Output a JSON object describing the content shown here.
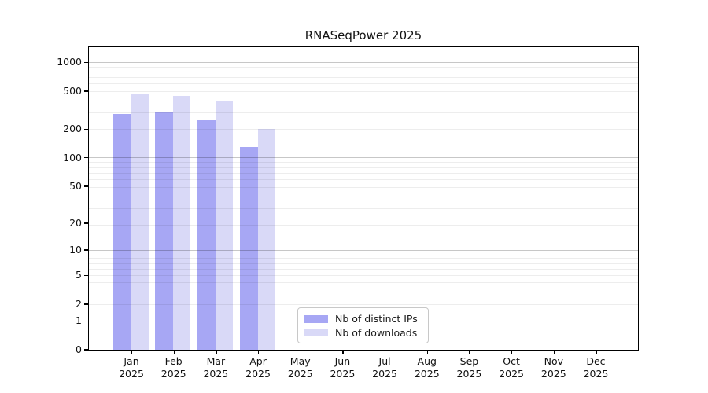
{
  "figure": {
    "title": "RNASeqPower 2025"
  },
  "chart_data": {
    "type": "bar",
    "title": "RNASeqPower 2025",
    "xlabel": "",
    "ylabel": "",
    "categories": [
      "Jan 2025",
      "Feb 2025",
      "Mar 2025",
      "Apr 2025",
      "May 2025",
      "Jun 2025",
      "Jul 2025",
      "Aug 2025",
      "Sep 2025",
      "Oct 2025",
      "Nov 2025",
      "Dec 2025"
    ],
    "series": [
      {
        "name": "Nb of distinct IPs",
        "color": "#a7a7f4",
        "values": [
          297,
          313,
          256,
          133,
          null,
          null,
          null,
          null,
          null,
          null,
          null,
          null
        ]
      },
      {
        "name": "Nb of downloads",
        "color": "#d9d9f7",
        "values": [
          481,
          454,
          400,
          207,
          null,
          null,
          null,
          null,
          null,
          null,
          null,
          null
        ]
      }
    ],
    "y_scale": "log10(1+x)",
    "y_ticks": [
      0,
      1,
      2,
      5,
      10,
      20,
      50,
      100,
      200,
      500,
      1000
    ],
    "y_tick_labels": [
      "0",
      "1",
      "2",
      "5",
      "10",
      "20",
      "50",
      "100",
      "200",
      "500",
      "1000"
    ],
    "ylim": [
      0,
      1440
    ],
    "grid": "horizontal, major at powers of ten, faint log minors, drawn over bars",
    "legend_position": "inside bottom-center",
    "colors": {
      "bar_distinct_ips": "#a7a7f4",
      "bar_downloads": "#d9d9f7",
      "grid_major": "rgba(0,0,0,0.22)",
      "grid_minor": "rgba(0,0,0,0.07)",
      "spine": "#000000",
      "legend_border": "#c8c8c8"
    }
  }
}
